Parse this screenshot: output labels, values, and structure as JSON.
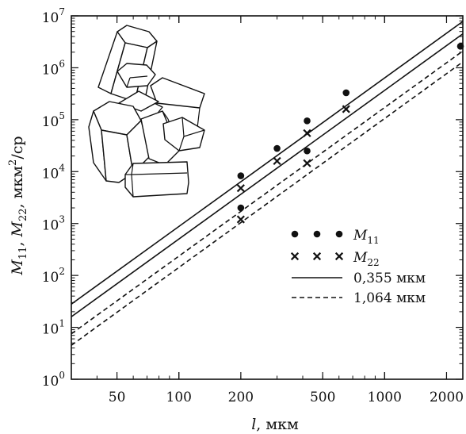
{
  "chart_data": {
    "type": "scatter",
    "title": "",
    "xlabel": {
      "var": "l",
      "unit": ", мкм"
    },
    "ylabel": {
      "m1": "M",
      "m1_sub": "11",
      "sep": ", ",
      "m2": "M",
      "m2_sub": "22",
      "unit": ", мкм",
      "unit_sup": "2",
      "unit_tail": "/ср"
    },
    "x_scale": "log",
    "y_scale": "log",
    "xlim": [
      30,
      2400
    ],
    "ylim": [
      1,
      10000000
    ],
    "x_ticks": [
      {
        "value": 50,
        "label": "50"
      },
      {
        "value": 100,
        "label": "100"
      },
      {
        "value": 200,
        "label": "200"
      },
      {
        "value": 500,
        "label": "500"
      },
      {
        "value": 1000,
        "label": "1000"
      },
      {
        "value": 2000,
        "label": "2000"
      }
    ],
    "y_ticks": [
      {
        "value": 1,
        "base": "10",
        "exp": "0"
      },
      {
        "value": 10,
        "base": "10",
        "exp": "1"
      },
      {
        "value": 100,
        "base": "10",
        "exp": "2"
      },
      {
        "value": 1000,
        "base": "10",
        "exp": "3"
      },
      {
        "value": 10000,
        "base": "10",
        "exp": "4"
      },
      {
        "value": 100000,
        "base": "10",
        "exp": "5"
      },
      {
        "value": 1000000,
        "base": "10",
        "exp": "6"
      },
      {
        "value": 10000000,
        "base": "10",
        "exp": "7"
      }
    ],
    "grid": false,
    "legend_position": "bottom-right",
    "series": [
      {
        "name": "M",
        "name_sub": "11",
        "kind": "points",
        "marker": "dot",
        "points": [
          [
            200,
            8300
          ],
          [
            200,
            2000
          ],
          [
            300,
            28000
          ],
          [
            420,
            95000
          ],
          [
            420,
            25000
          ],
          [
            650,
            330000
          ],
          [
            2400,
            2600000
          ]
        ]
      },
      {
        "name": "M",
        "name_sub": "22",
        "kind": "points",
        "marker": "cross",
        "points": [
          [
            200,
            4800
          ],
          [
            200,
            1200
          ],
          [
            300,
            16000
          ],
          [
            420,
            55000
          ],
          [
            420,
            14500
          ],
          [
            650,
            160000
          ]
        ]
      },
      {
        "name": "0,355 мкм",
        "kind": "lines",
        "style": "solid",
        "lines": [
          [
            [
              30,
              28
            ],
            [
              2400,
              7800000
            ]
          ],
          [
            [
              30,
              16
            ],
            [
              2400,
              4500000
            ]
          ]
        ]
      },
      {
        "name": "1,064 мкм",
        "kind": "lines",
        "style": "dashed",
        "lines": [
          [
            [
              30,
              7.5
            ],
            [
              2400,
              2100000
            ]
          ],
          [
            [
              30,
              4.5
            ],
            [
              2400,
              1300000
            ]
          ]
        ]
      }
    ]
  },
  "inset": {
    "subject": "crystal-aggregate-drawing"
  }
}
